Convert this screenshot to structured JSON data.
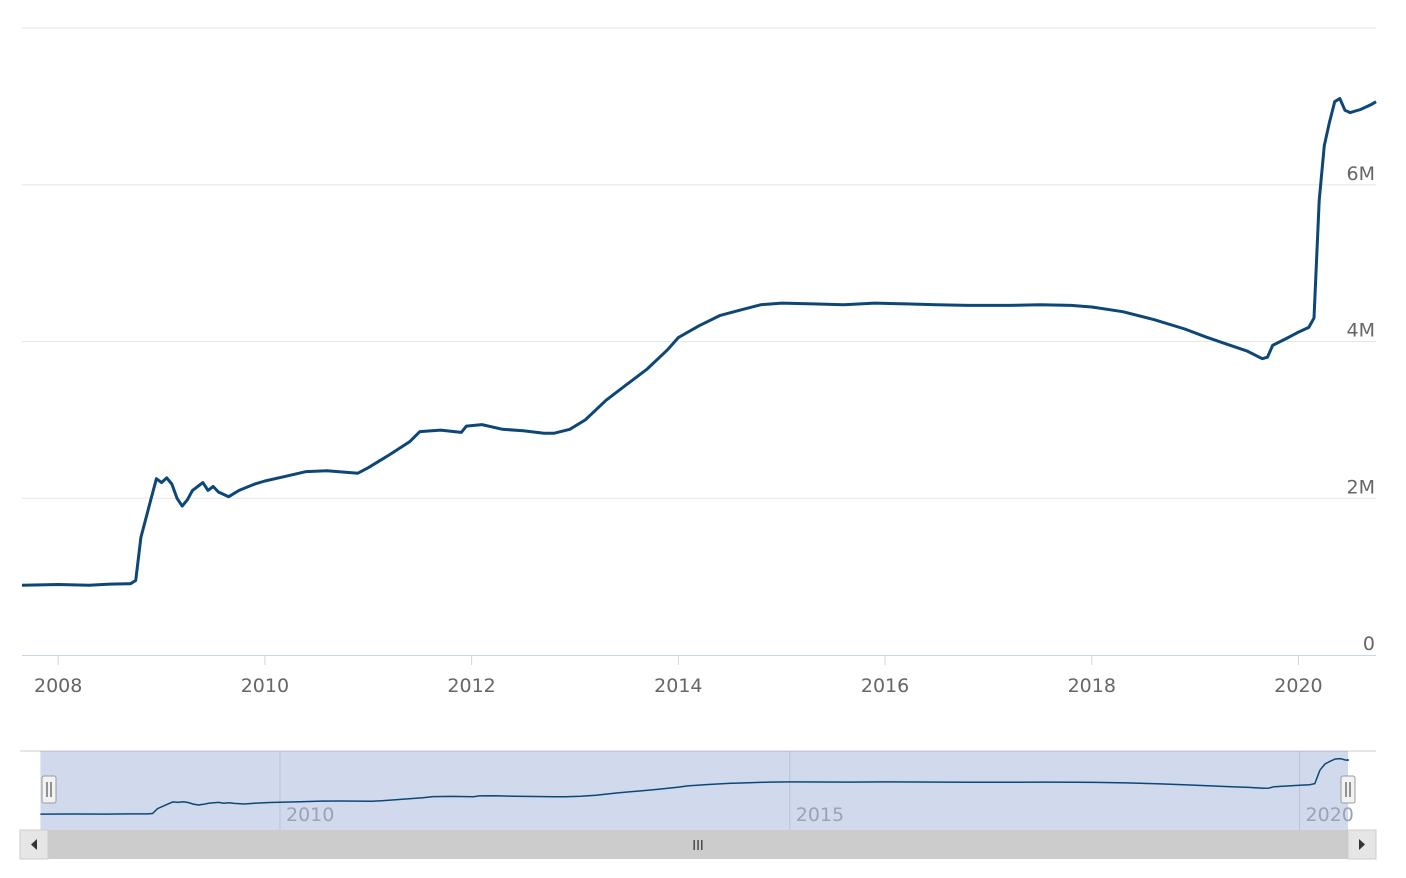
{
  "colors": {
    "series": "#0d4777",
    "grid": "#e6e6e6",
    "axis": "#ccd6eb",
    "navigator_mask": "rgba(102,133,194,0.3)",
    "scrollbar_track": "#f2f2f2",
    "scrollbar_thumb": "#cccccc"
  },
  "chart_data": {
    "type": "line",
    "title": "",
    "xlabel": "",
    "ylabel": "",
    "xlim": [
      2007.65,
      2020.75
    ],
    "ylim": [
      0,
      8000000
    ],
    "grid": true,
    "y_ticks": [
      {
        "value": 0,
        "label": "0"
      },
      {
        "value": 2000000,
        "label": "2M"
      },
      {
        "value": 4000000,
        "label": "4M"
      },
      {
        "value": 6000000,
        "label": "6M"
      }
    ],
    "x_ticks": [
      {
        "value": 2008,
        "label": "2008"
      },
      {
        "value": 2010,
        "label": "2010"
      },
      {
        "value": 2012,
        "label": "2012"
      },
      {
        "value": 2014,
        "label": "2014"
      },
      {
        "value": 2016,
        "label": "2016"
      },
      {
        "value": 2018,
        "label": "2018"
      },
      {
        "value": 2020,
        "label": "2020"
      }
    ],
    "series": [
      {
        "values": [
          [
            2007.65,
            890000
          ],
          [
            2008.0,
            900000
          ],
          [
            2008.3,
            890000
          ],
          [
            2008.5,
            905000
          ],
          [
            2008.7,
            910000
          ],
          [
            2008.75,
            950000
          ],
          [
            2008.8,
            1500000
          ],
          [
            2008.9,
            2000000
          ],
          [
            2008.95,
            2250000
          ],
          [
            2009.0,
            2200000
          ],
          [
            2009.05,
            2260000
          ],
          [
            2009.1,
            2180000
          ],
          [
            2009.15,
            2000000
          ],
          [
            2009.2,
            1900000
          ],
          [
            2009.25,
            1980000
          ],
          [
            2009.3,
            2100000
          ],
          [
            2009.35,
            2150000
          ],
          [
            2009.4,
            2200000
          ],
          [
            2009.45,
            2100000
          ],
          [
            2009.5,
            2150000
          ],
          [
            2009.55,
            2080000
          ],
          [
            2009.65,
            2020000
          ],
          [
            2009.75,
            2100000
          ],
          [
            2009.9,
            2180000
          ],
          [
            2010.0,
            2220000
          ],
          [
            2010.2,
            2280000
          ],
          [
            2010.4,
            2340000
          ],
          [
            2010.6,
            2350000
          ],
          [
            2010.9,
            2320000
          ],
          [
            2011.0,
            2390000
          ],
          [
            2011.2,
            2550000
          ],
          [
            2011.4,
            2720000
          ],
          [
            2011.5,
            2850000
          ],
          [
            2011.7,
            2870000
          ],
          [
            2011.9,
            2840000
          ],
          [
            2011.95,
            2920000
          ],
          [
            2012.1,
            2940000
          ],
          [
            2012.3,
            2880000
          ],
          [
            2012.5,
            2860000
          ],
          [
            2012.7,
            2830000
          ],
          [
            2012.8,
            2830000
          ],
          [
            2012.95,
            2880000
          ],
          [
            2013.1,
            3000000
          ],
          [
            2013.3,
            3250000
          ],
          [
            2013.5,
            3450000
          ],
          [
            2013.7,
            3650000
          ],
          [
            2013.9,
            3900000
          ],
          [
            2014.0,
            4050000
          ],
          [
            2014.2,
            4200000
          ],
          [
            2014.4,
            4330000
          ],
          [
            2014.6,
            4400000
          ],
          [
            2014.8,
            4470000
          ],
          [
            2015.0,
            4490000
          ],
          [
            2015.3,
            4480000
          ],
          [
            2015.6,
            4470000
          ],
          [
            2015.9,
            4490000
          ],
          [
            2016.2,
            4480000
          ],
          [
            2016.5,
            4470000
          ],
          [
            2016.8,
            4460000
          ],
          [
            2017.2,
            4460000
          ],
          [
            2017.5,
            4470000
          ],
          [
            2017.8,
            4460000
          ],
          [
            2018.0,
            4440000
          ],
          [
            2018.3,
            4380000
          ],
          [
            2018.6,
            4280000
          ],
          [
            2018.9,
            4160000
          ],
          [
            2019.1,
            4060000
          ],
          [
            2019.3,
            3970000
          ],
          [
            2019.5,
            3880000
          ],
          [
            2019.65,
            3780000
          ],
          [
            2019.7,
            3800000
          ],
          [
            2019.75,
            3950000
          ],
          [
            2019.9,
            4050000
          ],
          [
            2020.0,
            4120000
          ],
          [
            2020.1,
            4180000
          ],
          [
            2020.15,
            4300000
          ],
          [
            2020.2,
            5800000
          ],
          [
            2020.25,
            6500000
          ],
          [
            2020.3,
            6800000
          ],
          [
            2020.35,
            7060000
          ],
          [
            2020.4,
            7100000
          ],
          [
            2020.45,
            6950000
          ],
          [
            2020.5,
            6920000
          ],
          [
            2020.6,
            6960000
          ],
          [
            2020.7,
            7020000
          ],
          [
            2020.75,
            7060000
          ]
        ]
      }
    ]
  },
  "navigator": {
    "xlim": [
      2007.45,
      2020.75
    ],
    "selected_range": [
      2007.65,
      2020.75
    ],
    "x_ticks": [
      {
        "value": 2010,
        "label": "2010"
      },
      {
        "value": 2015,
        "label": "2015"
      },
      {
        "value": 2020,
        "label": "2020"
      }
    ],
    "scrollbar": {
      "left_arrow": "arrow-left-icon",
      "right_arrow": "arrow-right-icon",
      "grip": "III"
    }
  }
}
